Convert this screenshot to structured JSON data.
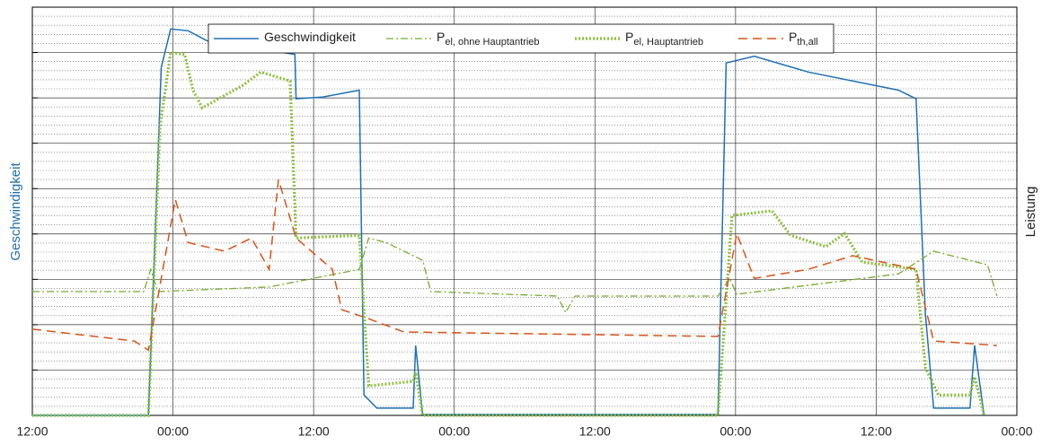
{
  "chart_data": {
    "type": "line",
    "ylabel": "Geschwindigkeit",
    "y2label": "Leistung",
    "xlim": [
      0,
      84
    ],
    "xticks": [
      {
        "value": 0,
        "label": "12:00"
      },
      {
        "value": 12,
        "label": "00:00"
      },
      {
        "value": 24,
        "label": "12:00"
      },
      {
        "value": 36,
        "label": "00:00"
      },
      {
        "value": 48,
        "label": "12:00"
      },
      {
        "value": 60,
        "label": "00:00"
      },
      {
        "value": 72,
        "label": "12:00"
      },
      {
        "value": 84,
        "label": "00:00"
      }
    ],
    "ylim": [
      0,
      9
    ],
    "yticks": [
      0,
      1,
      2,
      3,
      4,
      5,
      6,
      7,
      8,
      9
    ],
    "grid": true,
    "minor_grid": true,
    "legend": "top",
    "series": [
      {
        "name": "Geschwindigkeit",
        "color": "#1f6fb4",
        "style": "solid",
        "x": [
          0,
          9.9,
          11.0,
          11.8,
          13.3,
          14.9,
          22.4,
          22.5,
          24.8,
          27.9,
          28.3,
          29.4,
          32.5,
          32.7,
          33.3,
          58.5,
          59.2,
          61.6,
          66.2,
          73.9,
          75.4,
          76.2,
          76.9,
          80.0,
          80.4,
          81.2
        ],
        "values": [
          0,
          0,
          7.67,
          8.52,
          8.48,
          8.26,
          7.96,
          6.98,
          7.02,
          7.17,
          0.45,
          0.16,
          0.16,
          1.54,
          0.02,
          0.02,
          7.77,
          7.92,
          7.57,
          7.17,
          6.98,
          2.23,
          0.16,
          0.16,
          1.54,
          0
        ]
      },
      {
        "name": "P",
        "subscript": "el, ohne Hauptantrieb",
        "color": "#77ac30",
        "style": "dashdot",
        "x": [
          0,
          9.5,
          10.1,
          10.7,
          20.2,
          27.9,
          28.7,
          30.2,
          33.3,
          34.0,
          44.8,
          45.5,
          46.3,
          58.5,
          59.5,
          60.1,
          73.9,
          76.9,
          81.5,
          82.3
        ],
        "values": [
          2.73,
          2.73,
          3.22,
          2.73,
          2.83,
          3.22,
          3.91,
          3.81,
          3.42,
          2.73,
          2.63,
          2.27,
          2.63,
          2.63,
          3.02,
          2.67,
          3.12,
          3.62,
          3.32,
          2.63
        ]
      },
      {
        "name": "P",
        "subscript": "el, Hauptantrieb",
        "color": "#8cbf3f",
        "style": "dotted",
        "x": [
          0,
          9.9,
          10.9,
          11.8,
          13.0,
          13.7,
          14.5,
          17.9,
          19.5,
          22.0,
          22.5,
          27.9,
          28.7,
          32.5,
          32.7,
          33.3,
          58.5,
          59.7,
          63.1,
          64.7,
          67.7,
          69.3,
          70.8,
          75.4,
          76.2,
          77.3,
          80.0,
          80.4,
          81.2
        ],
        "values": [
          0,
          0,
          6.38,
          8.0,
          7.96,
          7.17,
          6.78,
          7.27,
          7.57,
          7.37,
          3.91,
          3.97,
          0.65,
          0.75,
          0.95,
          0,
          0,
          4.41,
          4.51,
          3.97,
          3.72,
          4.01,
          3.38,
          3.22,
          1.05,
          0.45,
          0.45,
          0.85,
          0
        ]
      },
      {
        "name": "P",
        "subscript": "th,all",
        "color": "#d95319",
        "style": "dashed",
        "x": [
          0,
          8.7,
          9.9,
          11.0,
          12.2,
          13.3,
          16.4,
          18.7,
          20.2,
          21.0,
          22.5,
          25.6,
          26.4,
          28.7,
          31.7,
          58.5,
          60.1,
          61.6,
          66.2,
          70.0,
          75.4,
          76.9,
          82.3
        ],
        "values": [
          1.9,
          1.64,
          1.44,
          3.02,
          4.76,
          3.81,
          3.62,
          3.91,
          3.22,
          5.2,
          3.91,
          3.22,
          2.33,
          2.13,
          1.84,
          1.74,
          4.01,
          3.02,
          3.22,
          3.52,
          3.22,
          1.64,
          1.54
        ]
      }
    ]
  }
}
